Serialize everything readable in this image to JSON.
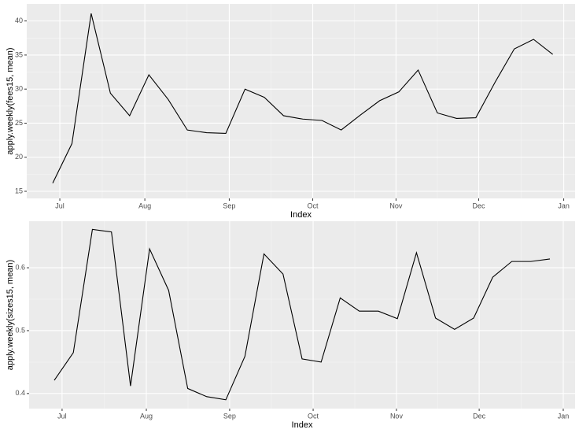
{
  "chart_data": [
    {
      "type": "line",
      "x_label": "Index",
      "y_label": "apply.weekly(fees15, mean)",
      "x": [
        0,
        1,
        2,
        3,
        4,
        5,
        6,
        7,
        8,
        9,
        10,
        11,
        12,
        13,
        14,
        15,
        16,
        17,
        18,
        19,
        20,
        21,
        22,
        23,
        24,
        25,
        26
      ],
      "values": [
        16.2,
        22,
        41.1,
        29.4,
        26.1,
        32.1,
        28.5,
        24,
        23.6,
        23.5,
        30,
        28.8,
        26.1,
        25.6,
        25.4,
        24,
        26.2,
        28.3,
        29.6,
        32.8,
        26.5,
        25.7,
        25.8,
        31,
        35.9,
        37.3,
        35.1
      ],
      "color": "#000000",
      "xlim": [
        -1.35,
        27.16
      ],
      "xticks": [
        {
          "value": 0.37,
          "label": "Jul"
        },
        {
          "value": 4.79,
          "label": "Aug"
        },
        {
          "value": 9.18,
          "label": "Sep"
        },
        {
          "value": 13.52,
          "label": "Oct"
        },
        {
          "value": 17.85,
          "label": "Nov"
        },
        {
          "value": 22.15,
          "label": "Dec"
        },
        {
          "value": 26.57,
          "label": "Jan"
        }
      ],
      "ylim": [
        13.96,
        42.5
      ],
      "yticks": [
        15,
        20,
        25,
        30,
        35,
        40
      ],
      "grid": true
    },
    {
      "type": "line",
      "x_label": "Index",
      "y_label": "apply.weekly(sizes15, mean)",
      "x": [
        0,
        1,
        2,
        3,
        4,
        5,
        6,
        7,
        8,
        9,
        10,
        11,
        12,
        13,
        14,
        15,
        16,
        17,
        18,
        19,
        20,
        21,
        22,
        23,
        24,
        25,
        26
      ],
      "values": [
        0.421,
        0.465,
        0.661,
        0.657,
        0.412,
        0.63,
        0.564,
        0.408,
        0.395,
        0.39,
        0.459,
        0.622,
        0.59,
        0.455,
        0.45,
        0.552,
        0.531,
        0.531,
        0.519,
        0.624,
        0.52,
        0.502,
        0.52,
        0.585,
        0.61,
        0.61,
        0.614
      ],
      "color": "#000000",
      "xlim": [
        -1.32,
        27.32
      ],
      "xticks": [
        {
          "value": 0.41,
          "label": "Jul"
        },
        {
          "value": 4.83,
          "label": "Aug"
        },
        {
          "value": 9.2,
          "label": "Sep"
        },
        {
          "value": 13.58,
          "label": "Oct"
        },
        {
          "value": 17.95,
          "label": "Nov"
        },
        {
          "value": 22.29,
          "label": "Dec"
        },
        {
          "value": 26.7,
          "label": "Jan"
        }
      ],
      "ylim": [
        0.376,
        0.674
      ],
      "yticks": [
        0.4,
        0.5,
        0.6
      ],
      "grid": true
    }
  ]
}
